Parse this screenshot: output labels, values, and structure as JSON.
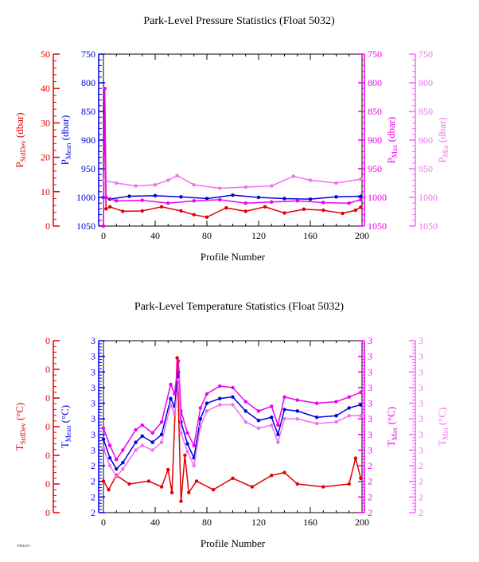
{
  "colors": {
    "stddev": "#e00000",
    "mean": "#0000dd",
    "max": "#ee00ee",
    "min": "#f070f0",
    "black": "#000000"
  },
  "footer_text": "F5032 P.1",
  "chart_data": [
    {
      "type": "line",
      "title": "Park-Level Pressure Statistics (Float 5032)",
      "xlabel": "Profile Number",
      "x_ticks": [
        "0",
        "40",
        "80",
        "120",
        "160",
        "200"
      ],
      "xlim": [
        0,
        200
      ],
      "axes": {
        "stddev": {
          "label_main": "P",
          "label_sub": "StdDev",
          "label_unit": " (dbar)",
          "ticks": [
            "0",
            "10",
            "20",
            "30",
            "40",
            "50"
          ],
          "range": [
            0,
            50
          ]
        },
        "mean": {
          "label_main": "P",
          "label_sub": "Mean",
          "label_unit": " (dbar)",
          "ticks": [
            "750",
            "800",
            "850",
            "900",
            "950",
            "1000",
            "1050"
          ],
          "range": [
            750,
            1050
          ],
          "inverted": true
        },
        "max": {
          "label_main": "P",
          "label_sub": "Max",
          "label_unit": " (dbar)",
          "ticks": [
            "750",
            "800",
            "850",
            "900",
            "950",
            "1000",
            "1050"
          ],
          "range": [
            750,
            1050
          ],
          "inverted": true
        },
        "min": {
          "label_main": "P",
          "label_sub": "Min",
          "label_unit": " (dbar)",
          "ticks": [
            "750",
            "800",
            "850",
            "900",
            "950",
            "1000",
            "1050"
          ],
          "range": [
            750,
            1050
          ],
          "inverted": true
        }
      },
      "series": [
        {
          "key": "stddev",
          "values": [
            [
              0,
              0
            ],
            [
              1,
              40
            ],
            [
              2,
              5
            ],
            [
              5,
              5.6
            ],
            [
              15,
              4.3
            ],
            [
              30,
              4.4
            ],
            [
              45,
              5.6
            ],
            [
              60,
              4.4
            ],
            [
              70,
              3.3
            ],
            [
              80,
              2.6
            ],
            [
              95,
              5.3
            ],
            [
              110,
              4.3
            ],
            [
              125,
              5.6
            ],
            [
              140,
              3.8
            ],
            [
              155,
              4.9
            ],
            [
              170,
              4.6
            ],
            [
              185,
              3.7
            ],
            [
              195,
              4.6
            ],
            [
              199,
              5.5
            ]
          ]
        },
        {
          "key": "mean",
          "values": [
            [
              0,
              1000
            ],
            [
              5,
              1003
            ],
            [
              20,
              998
            ],
            [
              40,
              997
            ],
            [
              60,
              999
            ],
            [
              80,
              1002
            ],
            [
              100,
              996
            ],
            [
              120,
              1000
            ],
            [
              140,
              1002
            ],
            [
              160,
              1003
            ],
            [
              180,
              999
            ],
            [
              199,
              998
            ]
          ]
        },
        {
          "key": "max",
          "values": [
            [
              0,
              1050
            ],
            [
              1,
              810
            ],
            [
              2,
              1000
            ],
            [
              10,
              1006
            ],
            [
              30,
              1005
            ],
            [
              50,
              1010
            ],
            [
              70,
              1006
            ],
            [
              90,
              1004
            ],
            [
              110,
              1010
            ],
            [
              130,
              1008
            ],
            [
              150,
              1006
            ],
            [
              170,
              1009
            ],
            [
              190,
              1010
            ],
            [
              199,
              1004
            ]
          ]
        },
        {
          "key": "min",
          "values": [
            [
              0,
              970
            ],
            [
              10,
              975
            ],
            [
              25,
              980
            ],
            [
              40,
              978
            ],
            [
              50,
              970
            ],
            [
              57,
              962
            ],
            [
              70,
              978
            ],
            [
              90,
              984
            ],
            [
              110,
              982
            ],
            [
              130,
              980
            ],
            [
              147,
              963
            ],
            [
              160,
              970
            ],
            [
              180,
              975
            ],
            [
              199,
              968
            ]
          ]
        }
      ]
    },
    {
      "type": "line",
      "title": "Park-Level Temperature Statistics (Float 5032)",
      "xlabel": "Profile Number",
      "x_ticks": [
        "0",
        "40",
        "80",
        "120",
        "160",
        "200"
      ],
      "xlim": [
        0,
        200
      ],
      "axes": {
        "stddev": {
          "label_main": "T",
          "label_sub": "StdDev",
          "label_unit": " (°C)",
          "ticks": [
            "0",
            "0",
            "0",
            "0",
            "0",
            "0",
            "0"
          ],
          "range": [
            0,
            6
          ]
        },
        "mean": {
          "label_main": "T",
          "label_sub": "Mean",
          "label_unit": " (°C)",
          "ticks": [
            "2",
            "2",
            "2",
            "2",
            "3",
            "3",
            "3",
            "3",
            "3",
            "3",
            "3",
            "3"
          ],
          "range": [
            0,
            11
          ]
        },
        "max": {
          "label_main": "T",
          "label_sub": "Max",
          "label_unit": " (°C)",
          "ticks": [
            "2",
            "2",
            "2",
            "2",
            "3",
            "3",
            "3",
            "3",
            "3",
            "3",
            "3",
            "3"
          ],
          "range": [
            0,
            11
          ]
        },
        "min": {
          "label_main": "T",
          "label_sub": "Min",
          "label_unit": " (°C)",
          "ticks": [
            "2",
            "2",
            "2",
            "2",
            "3",
            "3",
            "3",
            "3",
            "3",
            "3",
            "3",
            "3"
          ],
          "range": [
            0,
            11
          ]
        }
      },
      "series": [
        {
          "key": "stddev",
          "values": [
            [
              0,
              1.1
            ],
            [
              4,
              0.8
            ],
            [
              10,
              1.3
            ],
            [
              20,
              1.0
            ],
            [
              35,
              1.1
            ],
            [
              45,
              0.9
            ],
            [
              50,
              1.5
            ],
            [
              53,
              0.7
            ],
            [
              57,
              5.4
            ],
            [
              60,
              0.4
            ],
            [
              63,
              2.0
            ],
            [
              66,
              0.7
            ],
            [
              72,
              1.1
            ],
            [
              85,
              0.8
            ],
            [
              100,
              1.2
            ],
            [
              115,
              0.9
            ],
            [
              130,
              1.3
            ],
            [
              140,
              1.4
            ],
            [
              150,
              1.0
            ],
            [
              170,
              0.9
            ],
            [
              190,
              1.0
            ],
            [
              195,
              1.9
            ],
            [
              199,
              1.2
            ]
          ]
        },
        {
          "key": "mean",
          "values": [
            [
              0,
              4.7
            ],
            [
              5,
              3.5
            ],
            [
              10,
              2.8
            ],
            [
              15,
              3.2
            ],
            [
              25,
              4.5
            ],
            [
              30,
              4.9
            ],
            [
              38,
              4.5
            ],
            [
              45,
              5.0
            ],
            [
              52,
              7.3
            ],
            [
              55,
              6.8
            ],
            [
              58,
              9.0
            ],
            [
              60,
              5.8
            ],
            [
              65,
              4.4
            ],
            [
              70,
              3.5
            ],
            [
              75,
              6.0
            ],
            [
              80,
              7.0
            ],
            [
              90,
              7.3
            ],
            [
              100,
              7.4
            ],
            [
              110,
              6.5
            ],
            [
              120,
              5.9
            ],
            [
              130,
              6.1
            ],
            [
              135,
              5.0
            ],
            [
              140,
              6.6
            ],
            [
              150,
              6.5
            ],
            [
              165,
              6.1
            ],
            [
              180,
              6.2
            ],
            [
              190,
              6.7
            ],
            [
              199,
              6.9
            ]
          ]
        },
        {
          "key": "max",
          "values": [
            [
              0,
              5.4
            ],
            [
              5,
              4.3
            ],
            [
              10,
              3.4
            ],
            [
              15,
              4.0
            ],
            [
              25,
              5.3
            ],
            [
              30,
              5.6
            ],
            [
              38,
              5.1
            ],
            [
              45,
              5.8
            ],
            [
              52,
              8.2
            ],
            [
              55,
              7.6
            ],
            [
              58,
              9.7
            ],
            [
              60,
              6.5
            ],
            [
              65,
              5.1
            ],
            [
              70,
              4.3
            ],
            [
              75,
              6.7
            ],
            [
              80,
              7.6
            ],
            [
              90,
              8.1
            ],
            [
              100,
              8.0
            ],
            [
              110,
              7.1
            ],
            [
              120,
              6.5
            ],
            [
              130,
              6.8
            ],
            [
              135,
              5.6
            ],
            [
              140,
              7.4
            ],
            [
              150,
              7.2
            ],
            [
              165,
              7.0
            ],
            [
              180,
              7.1
            ],
            [
              190,
              7.4
            ],
            [
              199,
              7.7
            ]
          ]
        },
        {
          "key": "min",
          "values": [
            [
              0,
              4.1
            ],
            [
              5,
              3.0
            ],
            [
              10,
              2.3
            ],
            [
              15,
              2.8
            ],
            [
              25,
              4.0
            ],
            [
              30,
              4.3
            ],
            [
              38,
              4.0
            ],
            [
              45,
              4.5
            ],
            [
              52,
              6.9
            ],
            [
              55,
              6.3
            ],
            [
              58,
              8.5
            ],
            [
              60,
              5.1
            ],
            [
              65,
              3.9
            ],
            [
              70,
              3.0
            ],
            [
              75,
              5.5
            ],
            [
              80,
              6.5
            ],
            [
              90,
              6.9
            ],
            [
              100,
              6.9
            ],
            [
              110,
              5.8
            ],
            [
              120,
              5.4
            ],
            [
              130,
              5.6
            ],
            [
              135,
              4.5
            ],
            [
              140,
              6.0
            ],
            [
              150,
              6.0
            ],
            [
              165,
              5.7
            ],
            [
              180,
              5.8
            ],
            [
              190,
              6.2
            ],
            [
              199,
              6.2
            ]
          ]
        }
      ]
    }
  ]
}
